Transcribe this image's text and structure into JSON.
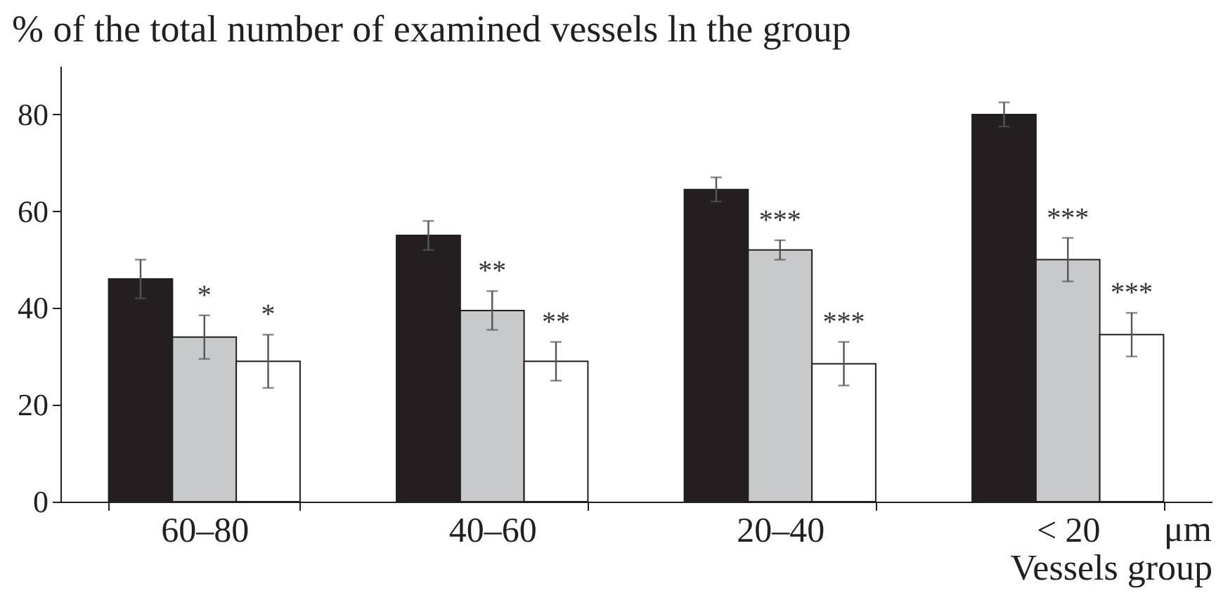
{
  "chart_data": {
    "type": "bar",
    "ylabel": "% of the total number of examined vessels ln the group",
    "xlabel": "Vessels group",
    "annotations": [
      "μm"
    ],
    "categories": [
      "60–80",
      "40–60",
      "20–40",
      "< 20"
    ],
    "ylim": [
      0,
      90
    ],
    "yticks": [
      0,
      20,
      40,
      60,
      80
    ],
    "series": [
      {
        "color": "#231f20",
        "values": [
          46,
          55,
          64.5,
          80
        ],
        "errors": [
          4,
          3,
          2.5,
          2.5
        ]
      },
      {
        "color": "#c8c9cb",
        "values": [
          34,
          39.5,
          52,
          50
        ],
        "errors": [
          4.5,
          4,
          2,
          4.5
        ],
        "value_labels": [
          "*",
          "**",
          "***",
          "***"
        ]
      },
      {
        "color": "#ffffff",
        "values": [
          29,
          29,
          28.5,
          34.5
        ],
        "errors": [
          5.5,
          4,
          4.5,
          4.5
        ],
        "value_labels": [
          "*",
          "**",
          "***",
          "***"
        ]
      }
    ]
  }
}
